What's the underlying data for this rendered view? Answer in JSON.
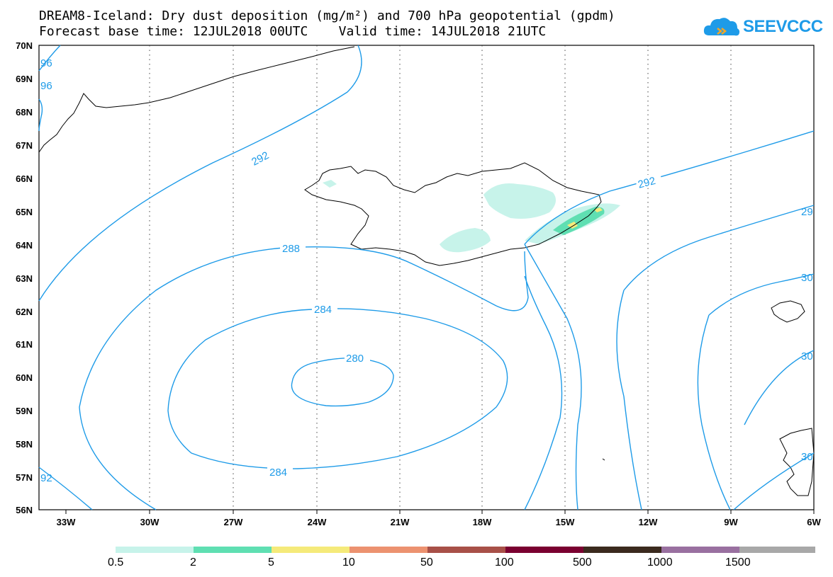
{
  "title": {
    "line1": "DREAM8-Iceland: Dry dust deposition (mg/m²) and 700 hPa geopotential (gpdm)",
    "line2": "Forecast base time: 12JUL2018 00UTC    Valid time: 14JUL2018 21UTC"
  },
  "logo": {
    "text": "SEEVCCC",
    "color": "#1e9be8"
  },
  "axes": {
    "lat_labels": [
      "70N",
      "69N",
      "68N",
      "67N",
      "66N",
      "65N",
      "64N",
      "63N",
      "62N",
      "61N",
      "60N",
      "59N",
      "58N",
      "57N",
      "56N"
    ],
    "lon_labels": [
      "33W",
      "30W",
      "27W",
      "24W",
      "21W",
      "18W",
      "15W",
      "12W",
      "9W",
      "6W"
    ]
  },
  "contour_labels": {
    "c280": "280",
    "c284a": "284",
    "c284b": "284",
    "c288": "288",
    "c292a": "292",
    "c292b": "292",
    "c296a": "96",
    "c296b": "96",
    "c29r": "29",
    "c30a": "30",
    "c30b": "30",
    "c30c": "30",
    "c92": "92"
  },
  "colorbar": {
    "labels": [
      "0.5",
      "2",
      "5",
      "10",
      "50",
      "100",
      "500",
      "1000",
      "1500"
    ],
    "colors": [
      "#c7f3ea",
      "#5fdfb2",
      "#f5ea7a",
      "#ec9270",
      "#a85048",
      "#7a0030",
      "#3b2a1e",
      "#9970a0",
      "#a8a8a8"
    ]
  },
  "colors": {
    "contour": "#1e9be8",
    "coast": "#000000"
  }
}
